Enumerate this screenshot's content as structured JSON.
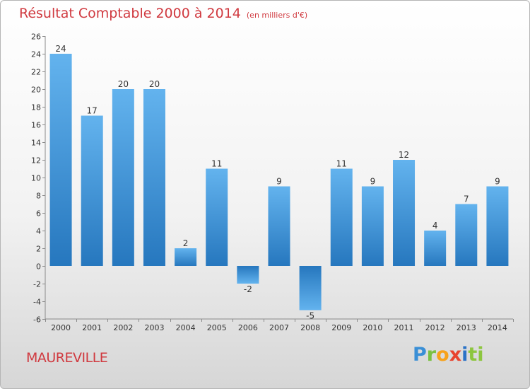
{
  "chart_data": {
    "type": "bar",
    "title": "Résultat Comptable 2000 à 2014",
    "subtitle": "(en milliers d'€)",
    "categories": [
      "2000",
      "2001",
      "2002",
      "2003",
      "2004",
      "2005",
      "2006",
      "2007",
      "2008",
      "2009",
      "2010",
      "2011",
      "2012",
      "2013",
      "2014"
    ],
    "values": [
      24,
      17,
      20,
      20,
      2,
      11,
      -2,
      9,
      -5,
      11,
      9,
      12,
      4,
      7,
      9
    ],
    "ylim": [
      -6,
      26
    ],
    "yticks": [
      -6,
      -4,
      -2,
      0,
      2,
      4,
      6,
      8,
      10,
      12,
      14,
      16,
      18,
      20,
      22,
      24,
      26
    ],
    "grid": false,
    "xlabel": "",
    "ylabel": "",
    "bar_color": "#3f97dc"
  },
  "footer": {
    "commune": "MAUREVILLE",
    "logo_parts": [
      "P",
      "r",
      "o",
      "x",
      "i",
      "ti"
    ]
  },
  "colors": {
    "title": "#d0393f",
    "bar_light": "#63b3ee",
    "bar_dark": "#2677be"
  }
}
